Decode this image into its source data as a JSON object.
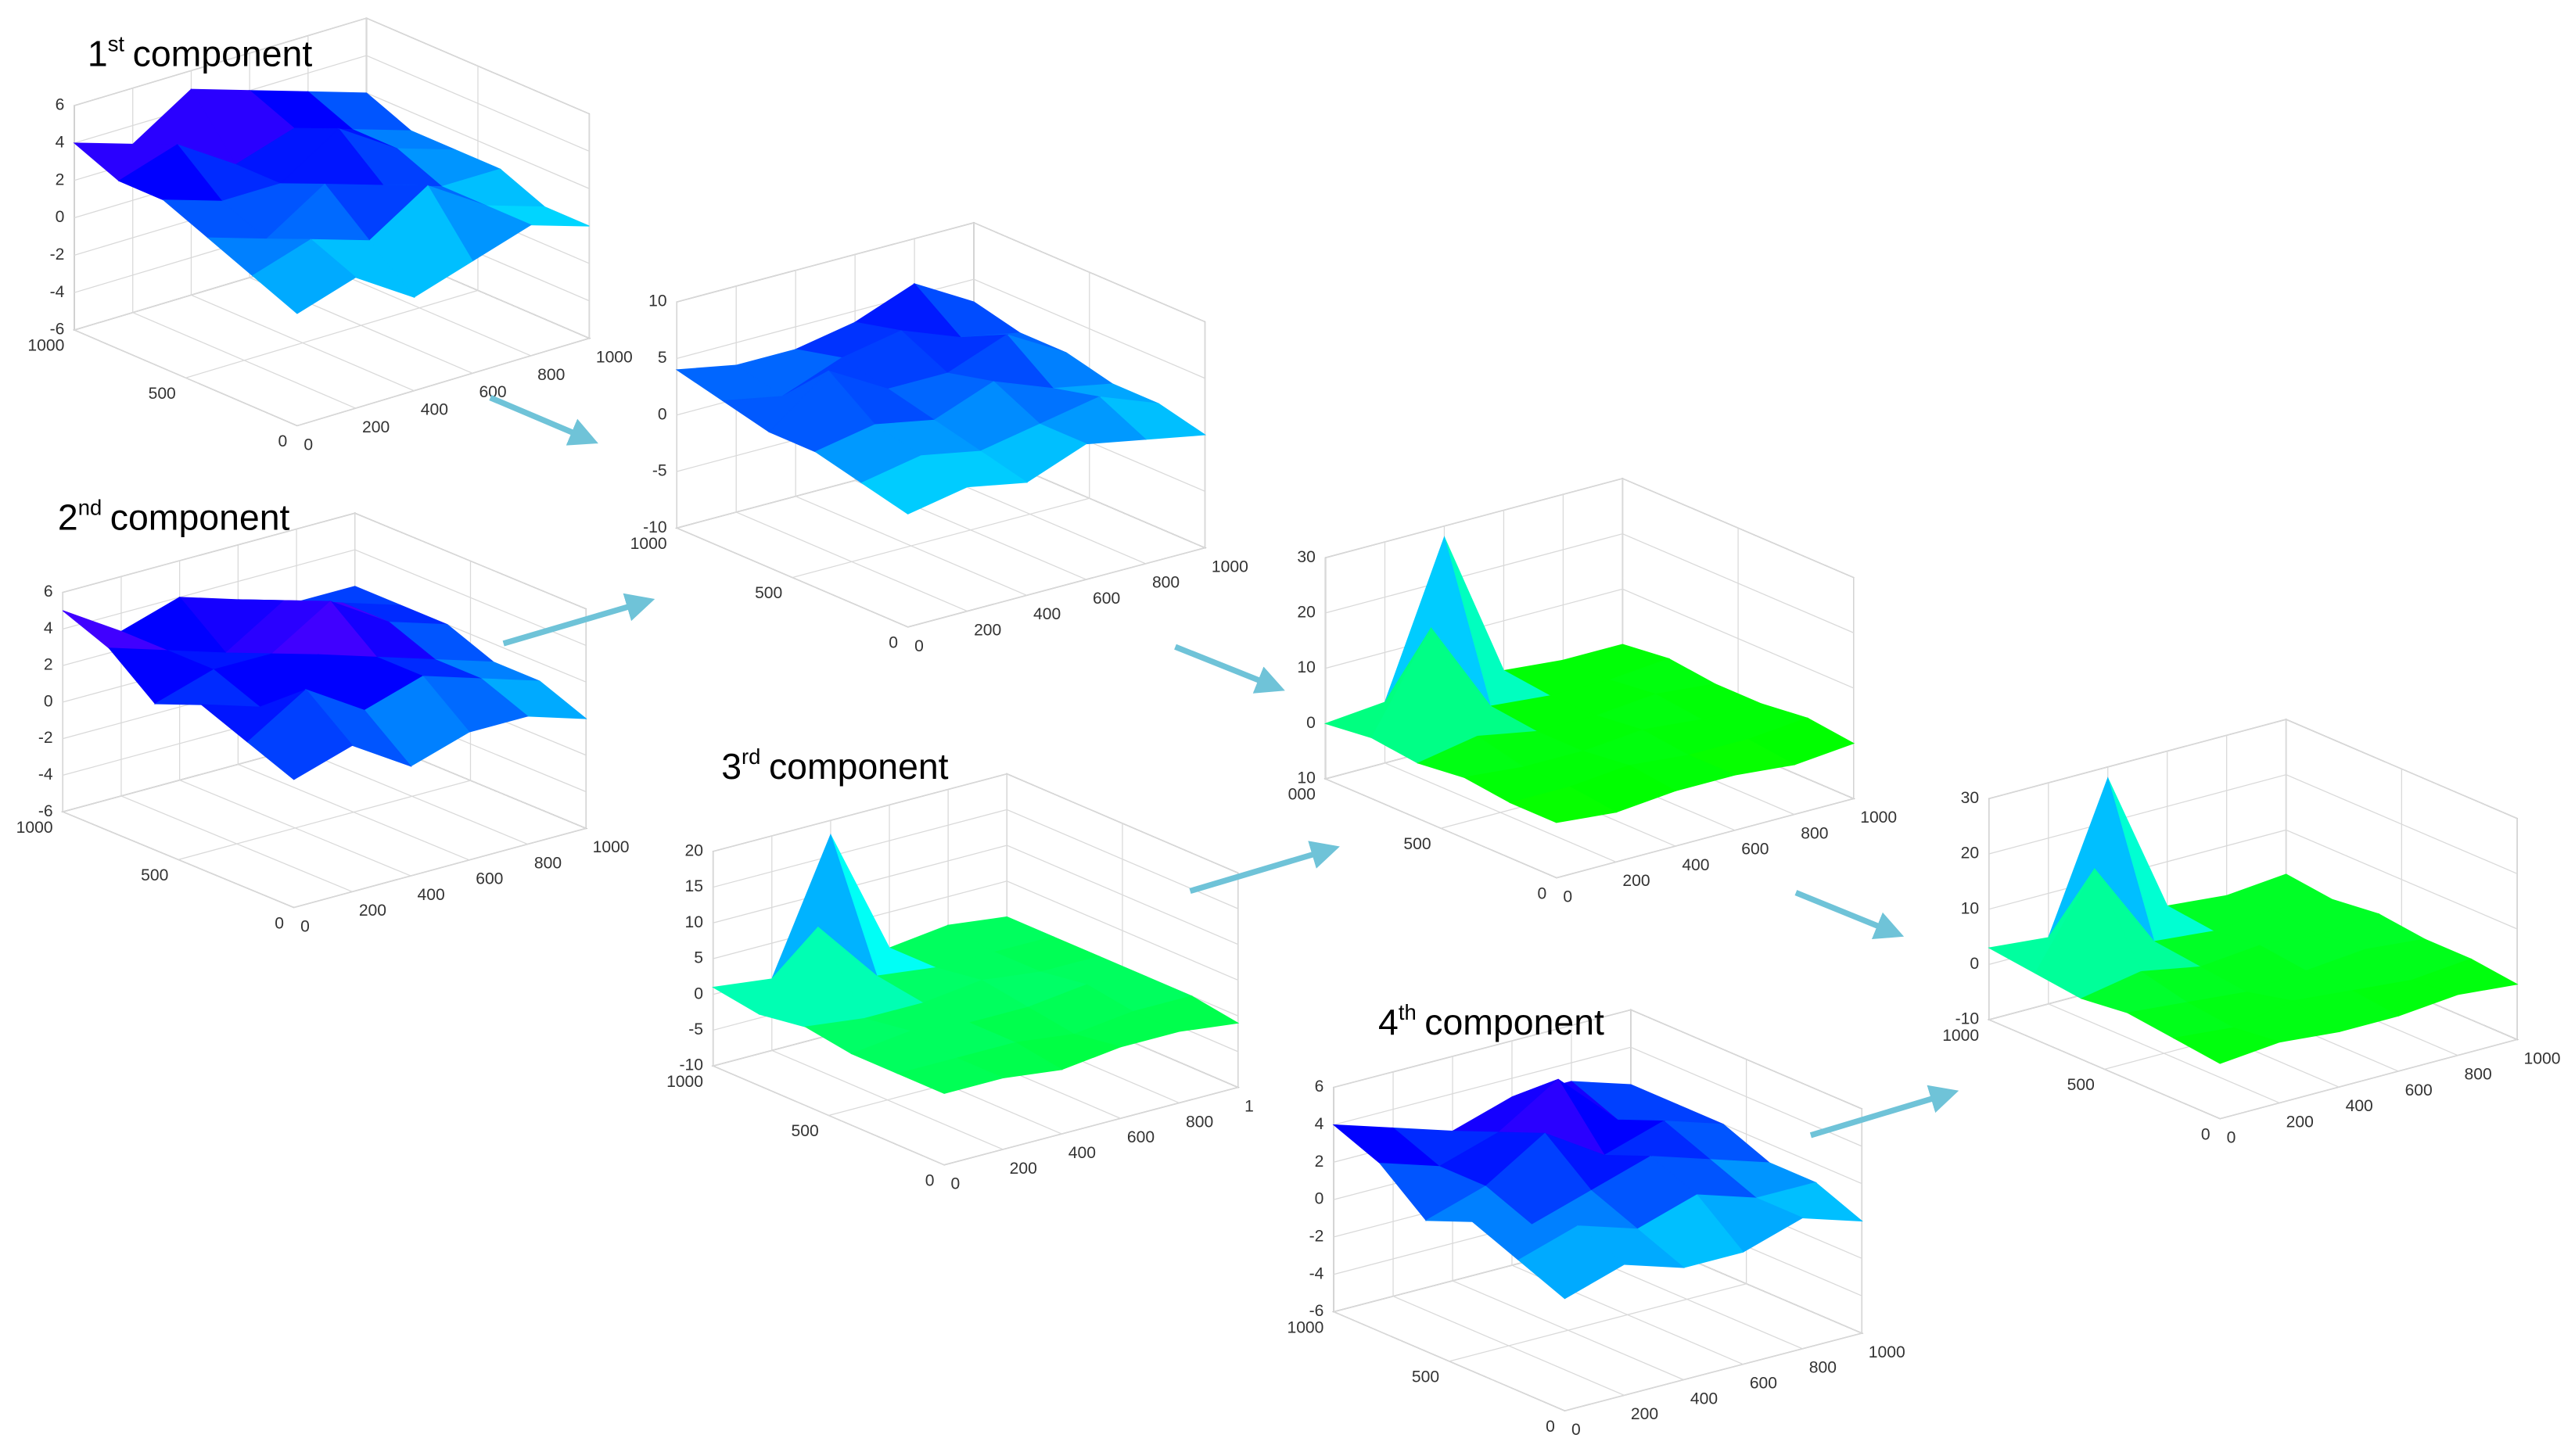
{
  "chart_data": [
    {
      "type": "surface",
      "title": [
        "1",
        "st",
        "component"
      ],
      "xlim": [
        0,
        1000
      ],
      "ylim": [
        0,
        1000
      ],
      "zlim": [
        -6,
        6
      ],
      "xticks": [
        0,
        200,
        400,
        600,
        800,
        1000
      ],
      "yticks": [
        0,
        500,
        1000
      ],
      "zticks": [
        -6,
        -4,
        -2,
        0,
        2,
        4,
        6
      ],
      "grid": true,
      "colormap": [
        "#ffff00",
        "#00ff00",
        "#00ffff",
        "#0000ff",
        "#ff00ff"
      ],
      "grid_x": [
        0,
        200,
        400,
        600,
        800,
        1000
      ],
      "grid_y": [
        0,
        200,
        400,
        600,
        800,
        1000
      ],
      "z": [
        [
          0,
          1,
          -1,
          0,
          1,
          0
        ],
        [
          1,
          2,
          1,
          3,
          1,
          0
        ],
        [
          2,
          1,
          3,
          2,
          1,
          1
        ],
        [
          3,
          2,
          2,
          4,
          2,
          1
        ],
        [
          3,
          4,
          2,
          3,
          2,
          1
        ],
        [
          4,
          3,
          5,
          4,
          3,
          2
        ]
      ]
    },
    {
      "type": "surface",
      "title": [
        "2",
        "nd",
        "component"
      ],
      "xlim": [
        0,
        1000
      ],
      "ylim": [
        0,
        1000
      ],
      "zlim": [
        -6,
        6
      ],
      "xticks": [
        0,
        200,
        400,
        600,
        800,
        1000
      ],
      "yticks": [
        0,
        500,
        1000
      ],
      "zticks": [
        -6,
        -4,
        -2,
        0,
        2,
        4,
        6
      ],
      "grid": true,
      "colormap": [
        "#ffff00",
        "#00ff00",
        "#00ffff",
        "#0000ff",
        "#ff00ff"
      ],
      "grid_x": [
        0,
        200,
        400,
        600,
        800,
        1000
      ],
      "grid_y": [
        0,
        200,
        400,
        600,
        800,
        1000
      ],
      "z": [
        [
          1,
          2,
          0,
          1,
          1,
          0
        ],
        [
          2,
          4,
          2,
          3,
          2,
          1
        ],
        [
          3,
          2,
          4,
          3,
          2,
          1
        ],
        [
          2,
          3,
          3,
          5,
          3,
          2
        ],
        [
          4,
          3,
          2,
          4,
          3,
          2
        ],
        [
          5,
          3,
          4,
          3,
          2,
          2
        ]
      ]
    },
    {
      "type": "surface",
      "xlim": [
        0,
        1000
      ],
      "ylim": [
        0,
        1000
      ],
      "zlim": [
        -10,
        10
      ],
      "xticks": [
        0,
        200,
        400,
        600,
        800,
        1000
      ],
      "yticks": [
        0,
        500,
        1000
      ],
      "zticks": [
        -10,
        -5,
        0,
        5,
        10
      ],
      "grid": true,
      "colormap": [
        "#ffff00",
        "#00ff00",
        "#00ffff",
        "#0000ff",
        "#ff00ff"
      ],
      "grid_x": [
        0,
        200,
        400,
        600,
        800,
        1000
      ],
      "grid_y": [
        0,
        200,
        400,
        600,
        800,
        1000
      ],
      "z": [
        [
          0,
          1,
          0,
          2,
          1,
          0
        ],
        [
          1,
          2,
          1,
          2,
          3,
          1
        ],
        [
          2,
          3,
          2,
          4,
          2,
          1
        ],
        [
          2,
          6,
          3,
          3,
          5,
          2
        ],
        [
          3,
          2,
          4,
          5,
          3,
          2
        ],
        [
          4,
          3,
          3,
          4,
          6,
          3
        ]
      ]
    },
    {
      "type": "surface",
      "title": [
        "3",
        "rd",
        "component"
      ],
      "xlim": [
        0,
        1000
      ],
      "ylim": [
        0,
        1000
      ],
      "zlim": [
        -10,
        20
      ],
      "xticks": [
        0,
        200,
        400,
        600,
        800,
        {
          "value": 1000,
          "label": "1"
        }
      ],
      "yticks": [
        0,
        500,
        1000
      ],
      "zticks": [
        -10,
        -5,
        0,
        5,
        10,
        15,
        20
      ],
      "grid": true,
      "colormap": [
        "#ffff00",
        "#00ff00",
        "#00ffff",
        "#0000ff",
        "#ff00ff"
      ],
      "grid_x": [
        0,
        200,
        400,
        600,
        800,
        1000
      ],
      "grid_y": [
        0,
        200,
        400,
        600,
        800,
        1000
      ],
      "z": [
        [
          0,
          0,
          -1,
          0,
          0,
          -1
        ],
        [
          0,
          0,
          0,
          -1,
          0,
          0
        ],
        [
          0,
          1,
          0,
          0,
          1,
          0
        ],
        [
          1,
          0,
          0,
          1,
          0,
          0
        ],
        [
          0,
          10,
          1,
          0,
          0,
          0
        ],
        [
          1,
          0,
          18,
          0,
          1,
          0
        ]
      ]
    },
    {
      "type": "surface",
      "xlim": [
        0,
        1000
      ],
      "ylim": [
        0,
        1000
      ],
      "zlim": [
        -10,
        30
      ],
      "xticks": [
        0,
        200,
        400,
        600,
        800,
        1000
      ],
      "yticks": [
        0,
        500,
        {
          "value": 1000,
          "label": "000"
        }
      ],
      "zticks": [
        {
          "value": -10,
          "label": "10"
        },
        0,
        10,
        20,
        30
      ],
      "grid": true,
      "colormap": [
        "#ffff00",
        "#00ff00",
        "#00ffff",
        "#0000ff",
        "#ff00ff"
      ],
      "grid_x": [
        0,
        200,
        400,
        600,
        800,
        1000
      ],
      "grid_y": [
        0,
        200,
        400,
        600,
        800,
        1000
      ],
      "z": [
        [
          0,
          -1,
          0,
          0,
          -1,
          0
        ],
        [
          0,
          0,
          1,
          0,
          0,
          1
        ],
        [
          1,
          0,
          0,
          1,
          0,
          0
        ],
        [
          0,
          2,
          0,
          0,
          1,
          0
        ],
        [
          1,
          18,
          1,
          0,
          0,
          1
        ],
        [
          0,
          1,
          28,
          1,
          0,
          0
        ]
      ]
    },
    {
      "type": "surface",
      "title": [
        "4",
        "th",
        "component"
      ],
      "xlim": [
        0,
        1000
      ],
      "ylim": [
        0,
        1000
      ],
      "zlim": [
        -6,
        6
      ],
      "xticks": [
        0,
        200,
        400,
        600,
        800,
        1000
      ],
      "yticks": [
        0,
        500,
        1000
      ],
      "zticks": [
        -6,
        -4,
        -2,
        0,
        2,
        4,
        6
      ],
      "grid": true,
      "colormap": [
        "#ffff00",
        "#00ff00",
        "#00ffff",
        "#0000ff",
        "#ff00ff"
      ],
      "grid_x": [
        0,
        200,
        400,
        600,
        800,
        1000
      ],
      "grid_y": [
        0,
        200,
        400,
        600,
        800,
        1000
      ],
      "z": [
        [
          0,
          1,
          0,
          0,
          1,
          0
        ],
        [
          1,
          2,
          1,
          2,
          1,
          1
        ],
        [
          2,
          1,
          2,
          3,
          2,
          1
        ],
        [
          1,
          2,
          4,
          2,
          3,
          2
        ],
        [
          3,
          2,
          3,
          5,
          2,
          2
        ],
        [
          4,
          3,
          2,
          3,
          3,
          2
        ]
      ]
    },
    {
      "type": "surface",
      "xlim": [
        0,
        1000
      ],
      "ylim": [
        0,
        1000
      ],
      "zlim": [
        -10,
        30
      ],
      "xticks": [
        0,
        200,
        400,
        600,
        800,
        1000
      ],
      "yticks": [
        0,
        500,
        1000
      ],
      "zticks": [
        -10,
        0,
        10,
        20,
        30
      ],
      "grid": true,
      "colormap": [
        "#ffff00",
        "#00ff00",
        "#00ffff",
        "#0000ff",
        "#ff00ff"
      ],
      "grid_x": [
        0,
        200,
        400,
        600,
        800,
        1000
      ],
      "grid_y": [
        0,
        200,
        400,
        600,
        800,
        1000
      ],
      "z": [
        [
          0,
          1,
          0,
          0,
          1,
          0
        ],
        [
          1,
          0,
          2,
          1,
          0,
          1
        ],
        [
          2,
          1,
          0,
          1,
          2,
          1
        ],
        [
          1,
          3,
          1,
          2,
          1,
          2
        ],
        [
          2,
          18,
          2,
          1,
          2,
          1
        ],
        [
          3,
          2,
          28,
          2,
          1,
          2
        ]
      ]
    }
  ]
}
